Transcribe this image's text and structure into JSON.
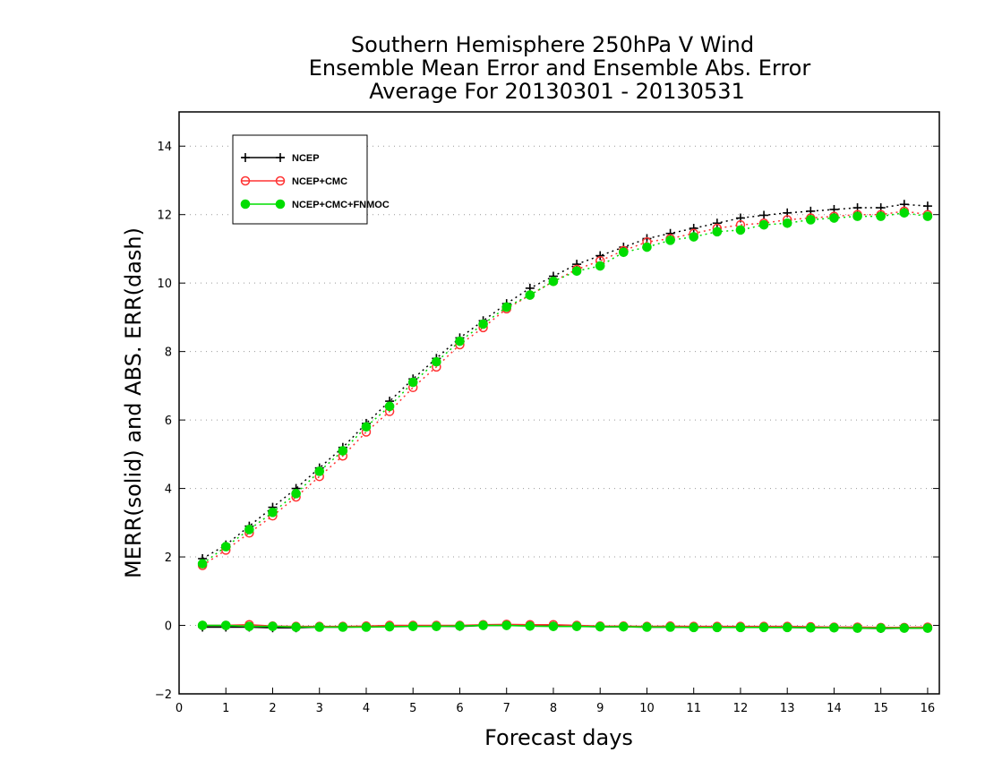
{
  "chart_data": {
    "type": "line",
    "title": [
      "Southern Hemisphere 250hPa V Wind",
      "Ensemble Mean Error and Ensemble Abs. Error",
      "Average For 20130301 - 20130531"
    ],
    "xlabel": "Forecast days",
    "ylabel": "MERR(solid) and ABS. ERR(dash)",
    "xlim": [
      0,
      16.25
    ],
    "ylim": [
      -2,
      15
    ],
    "xticks": [
      0,
      1,
      2,
      3,
      4,
      5,
      6,
      7,
      8,
      9,
      10,
      11,
      12,
      13,
      14,
      15,
      16
    ],
    "yticks": [
      -2,
      0,
      2,
      4,
      6,
      8,
      10,
      12,
      14
    ],
    "grid": "horizontal dotted",
    "legend_position": "top-left",
    "x": [
      0.5,
      1.0,
      1.5,
      2.0,
      2.5,
      3.0,
      3.5,
      4.0,
      4.5,
      5.0,
      5.5,
      6.0,
      6.5,
      7.0,
      7.5,
      8.0,
      8.5,
      9.0,
      9.5,
      10.0,
      10.5,
      11.0,
      11.5,
      12.0,
      12.5,
      13.0,
      13.5,
      14.0,
      14.5,
      15.0,
      15.5,
      16.0
    ],
    "series": [
      {
        "name": "NCEP",
        "color": "#000000",
        "marker": "plus",
        "abs_err": [
          1.95,
          2.35,
          2.9,
          3.45,
          4.0,
          4.6,
          5.2,
          5.9,
          6.55,
          7.2,
          7.8,
          8.4,
          8.9,
          9.4,
          9.85,
          10.2,
          10.55,
          10.8,
          11.05,
          11.3,
          11.45,
          11.6,
          11.75,
          11.9,
          11.98,
          12.05,
          12.1,
          12.15,
          12.2,
          12.2,
          12.3,
          12.25
        ],
        "mean_err": [
          -0.05,
          -0.05,
          -0.05,
          -0.07,
          -0.07,
          -0.05,
          -0.05,
          -0.04,
          -0.03,
          -0.02,
          -0.02,
          -0.03,
          0.0,
          0.0,
          0.0,
          -0.02,
          -0.02,
          -0.04,
          -0.04,
          -0.05,
          -0.05,
          -0.06,
          -0.05,
          -0.05,
          -0.06,
          -0.06,
          -0.07,
          -0.07,
          -0.08,
          -0.09,
          -0.08,
          -0.08
        ]
      },
      {
        "name": "NCEP+CMC",
        "color": "#ff3333",
        "marker": "open-circle",
        "abs_err": [
          1.75,
          2.2,
          2.7,
          3.2,
          3.75,
          4.35,
          4.95,
          5.65,
          6.25,
          6.95,
          7.55,
          8.2,
          8.7,
          9.25,
          9.65,
          10.05,
          10.4,
          10.65,
          10.95,
          11.2,
          11.3,
          11.45,
          11.6,
          11.7,
          11.75,
          11.85,
          11.9,
          11.95,
          12.0,
          12.0,
          12.1,
          12.0
        ],
        "mean_err": [
          0.0,
          0.0,
          0.02,
          -0.02,
          -0.03,
          -0.03,
          -0.03,
          -0.02,
          0.0,
          0.0,
          0.0,
          0.0,
          0.02,
          0.03,
          0.02,
          0.02,
          0.0,
          -0.02,
          -0.02,
          -0.03,
          -0.02,
          -0.03,
          -0.03,
          -0.03,
          -0.03,
          -0.03,
          -0.04,
          -0.05,
          -0.05,
          -0.06,
          -0.06,
          -0.05
        ]
      },
      {
        "name": "NCEP+CMC+FNMOC",
        "color": "#00dd00",
        "marker": "filled-circle",
        "abs_err": [
          1.8,
          2.3,
          2.8,
          3.3,
          3.85,
          4.5,
          5.1,
          5.8,
          6.4,
          7.1,
          7.7,
          8.3,
          8.8,
          9.3,
          9.65,
          10.05,
          10.35,
          10.5,
          10.9,
          11.05,
          11.25,
          11.35,
          11.5,
          11.55,
          11.7,
          11.75,
          11.85,
          11.9,
          11.95,
          11.95,
          12.05,
          11.95
        ],
        "mean_err": [
          0.0,
          0.0,
          -0.03,
          -0.03,
          -0.05,
          -0.05,
          -0.05,
          -0.05,
          -0.04,
          -0.03,
          -0.03,
          -0.02,
          0.0,
          0.0,
          -0.02,
          -0.03,
          -0.03,
          -0.04,
          -0.04,
          -0.05,
          -0.05,
          -0.06,
          -0.06,
          -0.06,
          -0.06,
          -0.06,
          -0.07,
          -0.07,
          -0.08,
          -0.08,
          -0.08,
          -0.08
        ]
      }
    ]
  }
}
